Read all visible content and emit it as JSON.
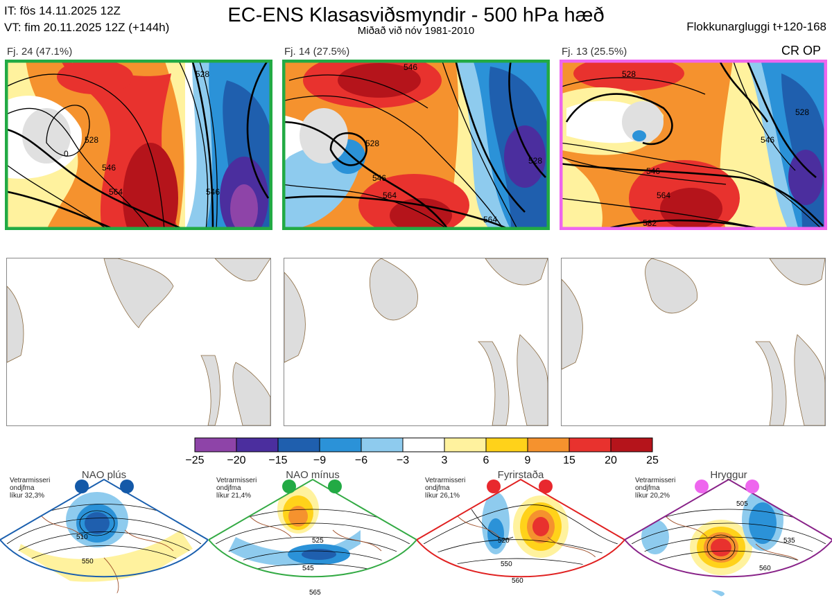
{
  "header": {
    "it_line": "IT: fös 14.11.2025 12Z",
    "vt_line": "VT: fim 20.11.2025 12Z  (+144h)",
    "title": "EC-ENS Klasasviðsmyndir - 500 hPa hæð",
    "subtitle": "Miðað við nóv 1981-2010",
    "window": "Flokkunargluggi t+120-168",
    "cr_op": "CR OP"
  },
  "clusters": [
    {
      "label": "Fj. 24 (47.1%)",
      "border_color": "#22aa44",
      "contour_labels": [
        "528",
        "546",
        "564",
        "546",
        "528",
        "0"
      ]
    },
    {
      "label": "Fj. 14 (27.5%)",
      "border_color": "#22aa44",
      "contour_labels": [
        "546",
        "528",
        "546",
        "564",
        "528",
        "564"
      ]
    },
    {
      "label": "Fj. 13 (25.5%)",
      "border_color": "#ee66ee",
      "contour_labels": [
        "528",
        "546",
        "564",
        "582",
        "528",
        "546"
      ]
    }
  ],
  "colorbar": {
    "ticks": [
      "−25",
      "−20",
      "−15",
      "−9",
      "−6",
      "−3",
      "3",
      "6",
      "9",
      "15",
      "20",
      "25"
    ],
    "colors": [
      "#8e44a8",
      "#4b2e9e",
      "#1f5fae",
      "#2b92d8",
      "#8ecbee",
      "#ffffff",
      "#fff29e",
      "#ffd21a",
      "#f5922e",
      "#e8322e",
      "#b5141b"
    ]
  },
  "regimes": [
    {
      "name": "NAO plús",
      "text": "Vetrarmisseri\nondjfma\nlíkur 32,3%",
      "color": "#1a5fae",
      "dot": "#1459a8",
      "labels": [
        "510",
        "550"
      ]
    },
    {
      "name": "NAO mínus",
      "text": "Vetrarmisseri\nondjfma\nlíkur 21,4%",
      "color": "#33aa44",
      "dot": "#22aa44",
      "labels": [
        "525",
        "545",
        "565"
      ]
    },
    {
      "name": "Fyrirstaða",
      "text": "Vetrarmisseri\nondjfma\nlíkur 26,1%",
      "color": "#e02020",
      "dot": "#e8282e",
      "labels": [
        "520",
        "550",
        "560"
      ]
    },
    {
      "name": "Hryggur",
      "text": "Vetrarmisseri\nondjfma\nlíkur 20,2%",
      "color": "#882288",
      "dot": "#ee66ee",
      "labels": [
        "505",
        "535",
        "560"
      ]
    }
  ]
}
